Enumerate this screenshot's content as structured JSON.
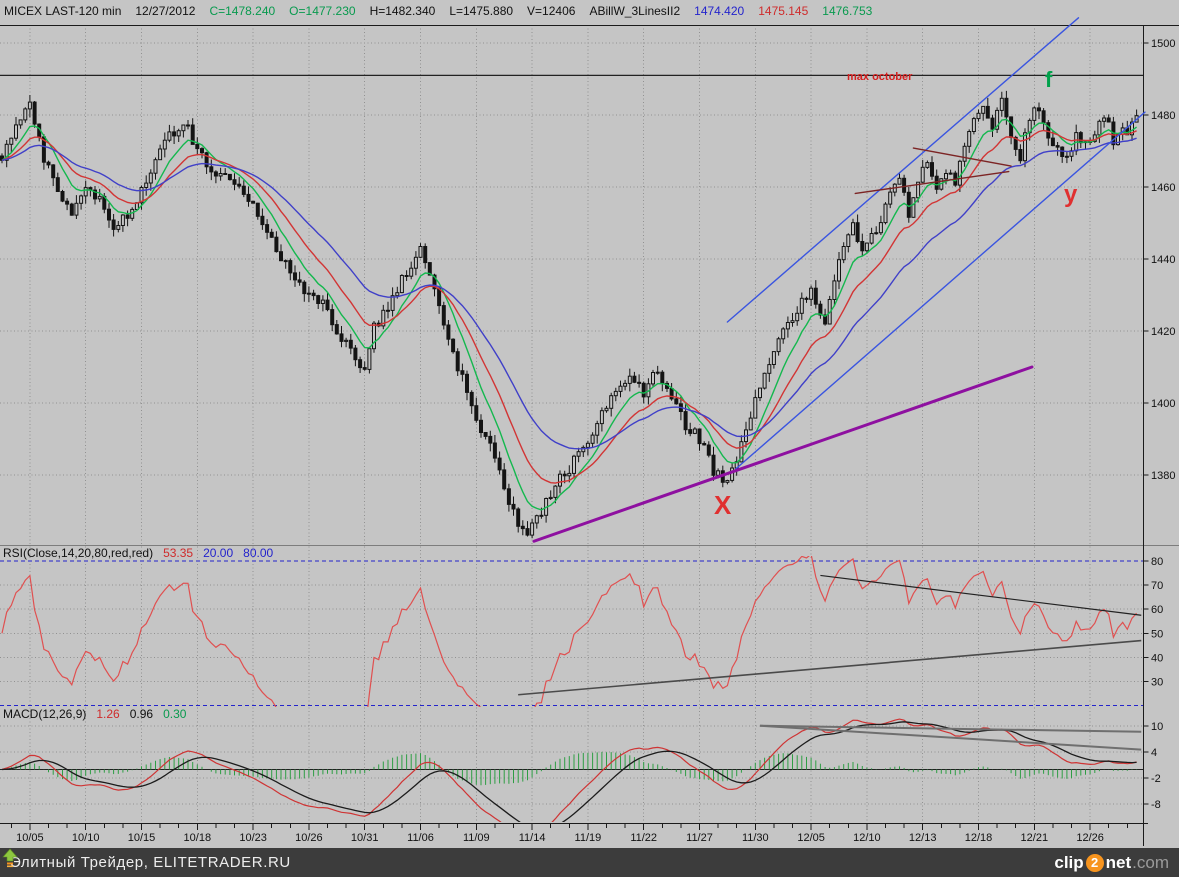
{
  "header": {
    "symbol": "MICEX LAST-120 min",
    "date": "12/27/2012",
    "close": "C=1478.240",
    "open": "O=1477.230",
    "high": "H=1482.340",
    "low": "L=1475.880",
    "volume": "V=12406",
    "indicator_name": "ABillW_3LinesII2",
    "indicator_blue": "1474.420",
    "indicator_red": "1475.145",
    "indicator_green": "1476.753"
  },
  "rsi_label": {
    "name": "RSI(Close,14,20,80,red,red)",
    "value": "53.35",
    "lower": "20.00",
    "upper": "80.00"
  },
  "macd_label": {
    "name": "MACD(12,26,9)",
    "macd": "1.26",
    "signal": "0.96",
    "hist": "0.30"
  },
  "annotations": {
    "max_october": "max october",
    "f_label": "f",
    "y_label": "y",
    "x_label": "X"
  },
  "footer": {
    "text": "Элитный Трейдер, ELITETRADER.RU",
    "logo": {
      "clip": "clip",
      "two": "2",
      "net": "net",
      "com": ".com"
    }
  },
  "colors": {
    "background": "#c5c5c5",
    "grid": "#919191",
    "candle": "#141414",
    "ma_fast_green": "#14b84e",
    "ma_mid_red": "#d23535",
    "ma_slow_blue": "#4040c8",
    "channel_blue": "#3a55e0",
    "purple_trendline": "#8e10a0",
    "maroon_trendline": "#7c2424",
    "rsi_line": "#e05050",
    "band_dashed_blue": "#2424cc",
    "macd_line": "#cf3434",
    "macd_signal": "#1c1c1c",
    "macd_hist": "#2e9e44",
    "gray_trendline": "#6f6f6f",
    "annotation_red": "#d42020",
    "annotation_green": "#00a14b",
    "footer_bg": "#3c3c3c",
    "logo_orange": "#f7941e",
    "logo_green": "#8dc63f"
  },
  "chart_data": {
    "type": "candlestick",
    "title": "MICEX LAST-120 min",
    "interval_minutes": 120,
    "last_bar": {
      "date": "12/27/2012",
      "open": 1477.23,
      "high": 1482.34,
      "low": 1475.88,
      "close": 1478.24,
      "volume": 12406
    },
    "price_axis": {
      "ticks": [
        1500,
        1480,
        1460,
        1440,
        1420,
        1400,
        1380
      ],
      "visible_min": 1361,
      "visible_max": 1492
    },
    "date_axis": {
      "labels": [
        "10/05",
        "10/10",
        "10/15",
        "10/18",
        "10/23",
        "10/26",
        "10/31",
        "11/06",
        "11/09",
        "11/14",
        "11/19",
        "11/22",
        "11/27",
        "11/30",
        "12/05",
        "12/10",
        "12/13",
        "12/18",
        "12/21",
        "12/26"
      ],
      "label_bars": [
        6,
        18,
        30,
        42,
        54,
        66,
        78,
        90,
        102,
        114,
        126,
        138,
        150,
        162,
        174,
        186,
        198,
        210,
        222,
        234
      ],
      "bars_total": 245,
      "minor_tick_every": 4
    },
    "closes_anchors": [
      [
        0,
        1467
      ],
      [
        3,
        1478
      ],
      [
        6,
        1483
      ],
      [
        9,
        1468
      ],
      [
        12,
        1458
      ],
      [
        15,
        1452
      ],
      [
        18,
        1461
      ],
      [
        21,
        1456
      ],
      [
        24,
        1448
      ],
      [
        27,
        1452
      ],
      [
        30,
        1459
      ],
      [
        33,
        1468
      ],
      [
        36,
        1474
      ],
      [
        39,
        1478
      ],
      [
        42,
        1471
      ],
      [
        45,
        1464
      ],
      [
        48,
        1462
      ],
      [
        51,
        1459
      ],
      [
        54,
        1456
      ],
      [
        57,
        1447
      ],
      [
        60,
        1440
      ],
      [
        63,
        1434
      ],
      [
        66,
        1430
      ],
      [
        69,
        1427
      ],
      [
        72,
        1420
      ],
      [
        75,
        1414
      ],
      [
        78,
        1408
      ],
      [
        80,
        1421
      ],
      [
        83,
        1426
      ],
      [
        86,
        1434
      ],
      [
        90,
        1442
      ],
      [
        93,
        1431
      ],
      [
        96,
        1417
      ],
      [
        99,
        1407
      ],
      [
        102,
        1396
      ],
      [
        105,
        1388
      ],
      [
        108,
        1376
      ],
      [
        111,
        1367
      ],
      [
        113,
        1363
      ],
      [
        116,
        1370
      ],
      [
        119,
        1377
      ],
      [
        122,
        1382
      ],
      [
        126,
        1390
      ],
      [
        129,
        1397
      ],
      [
        132,
        1403
      ],
      [
        135,
        1406
      ],
      [
        138,
        1403
      ],
      [
        141,
        1409
      ],
      [
        144,
        1401
      ],
      [
        147,
        1394
      ],
      [
        150,
        1390
      ],
      [
        153,
        1381
      ],
      [
        156,
        1377
      ],
      [
        159,
        1388
      ],
      [
        162,
        1401
      ],
      [
        165,
        1411
      ],
      [
        168,
        1419
      ],
      [
        171,
        1426
      ],
      [
        174,
        1431
      ],
      [
        177,
        1423
      ],
      [
        180,
        1439
      ],
      [
        183,
        1449
      ],
      [
        185,
        1441
      ],
      [
        188,
        1448
      ],
      [
        191,
        1457
      ],
      [
        193,
        1462
      ],
      [
        195,
        1452
      ],
      [
        197,
        1461
      ],
      [
        199,
        1468
      ],
      [
        201,
        1458
      ],
      [
        203,
        1465
      ],
      [
        205,
        1461
      ],
      [
        207,
        1472
      ],
      [
        209,
        1479
      ],
      [
        211,
        1483
      ],
      [
        213,
        1476
      ],
      [
        215,
        1484
      ],
      [
        217,
        1474
      ],
      [
        219,
        1468
      ],
      [
        221,
        1480
      ],
      [
        223,
        1481
      ],
      [
        225,
        1475
      ],
      [
        227,
        1471
      ],
      [
        229,
        1468
      ],
      [
        231,
        1474
      ],
      [
        233,
        1472
      ],
      [
        235,
        1476
      ],
      [
        237,
        1480
      ],
      [
        239,
        1473
      ],
      [
        241,
        1475
      ],
      [
        244,
        1478.24
      ]
    ],
    "moving_averages": [
      {
        "name": "fast",
        "period": 8,
        "color": "#14b84e"
      },
      {
        "name": "mid",
        "period": 16,
        "color": "#d23535"
      },
      {
        "name": "slow",
        "period": 30,
        "color": "#4040c8"
      }
    ],
    "rsi_panel": {
      "period": 14,
      "value": 53.35,
      "lower_band": 20,
      "upper_band": 80,
      "ticks": [
        80,
        70,
        60,
        50,
        40,
        30
      ],
      "trendlines": [
        {
          "name": "rsi-rising-support",
          "from": {
            "bar": 111,
            "value": 24.5
          },
          "to": {
            "bar": 245,
            "value": 47
          },
          "color": "#4a4a4a",
          "width": 1.6
        },
        {
          "name": "rsi-falling-resistance",
          "from": {
            "bar": 176,
            "value": 74
          },
          "to": {
            "bar": 245,
            "value": 57.5
          },
          "color": "#222222",
          "width": 1.2
        }
      ]
    },
    "macd_panel": {
      "fast": 12,
      "slow": 26,
      "signal": 9,
      "macd_value": 1.26,
      "signal_value": 0.96,
      "hist_value": 0.3,
      "ticks": [
        10,
        4,
        -2,
        -8
      ],
      "trendlines": [
        {
          "name": "macd-flat-resistance",
          "from": {
            "bar": 163,
            "value": 10.1
          },
          "to": {
            "bar": 245,
            "value": 8.7
          },
          "color": "#6f6f6f",
          "width": 2
        },
        {
          "name": "macd-falling-resistance",
          "from": {
            "bar": 163,
            "value": 10.1
          },
          "to": {
            "bar": 245,
            "value": 4.6
          },
          "color": "#6f6f6f",
          "width": 2
        }
      ]
    },
    "overlays": [
      {
        "name": "max-october-line",
        "type": "hline",
        "price": 1491,
        "color": "#222222",
        "width": 1.3
      },
      {
        "name": "channel-upper",
        "type": "segment",
        "from": {
          "bar": 156,
          "price": 1422.5
        },
        "to": {
          "bar": 231.5,
          "price": 1507
        },
        "color": "#3a55e0",
        "width": 1.4
      },
      {
        "name": "channel-lower",
        "type": "segment",
        "from": {
          "bar": 157.8,
          "price": 1381.7
        },
        "to": {
          "bar": 245.8,
          "price": 1480.8
        },
        "color": "#3a55e0",
        "width": 1.4
      },
      {
        "name": "purple-support",
        "type": "segment",
        "from": {
          "bar": 114.4,
          "price": 1361.6
        },
        "to": {
          "bar": 221.5,
          "price": 1410
        },
        "color": "#8e10a0",
        "width": 3
      },
      {
        "name": "maroon-wedge-top",
        "type": "segment",
        "from": {
          "bar": 196,
          "price": 1470.8
        },
        "to": {
          "bar": 217,
          "price": 1465.8
        },
        "color": "#7c2424",
        "width": 1.4
      },
      {
        "name": "maroon-wedge-bottom",
        "type": "segment",
        "from": {
          "bar": 183.5,
          "price": 1458.2
        },
        "to": {
          "bar": 216.5,
          "price": 1464.3
        },
        "color": "#7c2424",
        "width": 1.4
      }
    ]
  }
}
